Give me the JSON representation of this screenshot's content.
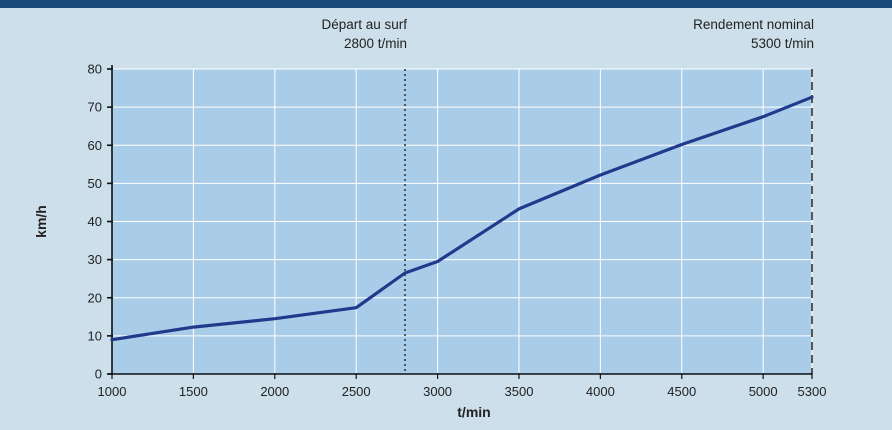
{
  "chart_data": {
    "type": "line",
    "title": "",
    "xlabel": "t/min",
    "ylabel": "km/h",
    "x_ticks": [
      1000,
      1500,
      2000,
      2500,
      3000,
      3500,
      4000,
      4500,
      5000,
      5300
    ],
    "y_ticks": [
      0,
      10,
      20,
      30,
      40,
      50,
      60,
      70,
      80
    ],
    "xlim": [
      1000,
      5300
    ],
    "ylim": [
      0,
      80
    ],
    "grid": true,
    "series": [
      {
        "x": [
          1000,
          1500,
          2000,
          2500,
          2800,
          3000,
          3500,
          4000,
          4500,
          5000,
          5300
        ],
        "y": [
          9,
          12.3,
          14.5,
          17.4,
          26.5,
          29.5,
          43.3,
          52.2,
          60.2,
          67.5,
          72.6
        ]
      }
    ],
    "markers": [
      {
        "x": 2800,
        "style": "dotted",
        "label_line1": "Départ au surf",
        "label_line2": "2800 t/min"
      },
      {
        "x": 5300,
        "style": "dashed",
        "label_line1": "Rendement nominal",
        "label_line2": "5300 t/min"
      }
    ],
    "colors": {
      "plot_bg": "#a9cde9",
      "page_bg": "#ccdfea",
      "line": "#223a8c",
      "grid": "#ffffff",
      "topbar": "#1a4a78"
    }
  }
}
